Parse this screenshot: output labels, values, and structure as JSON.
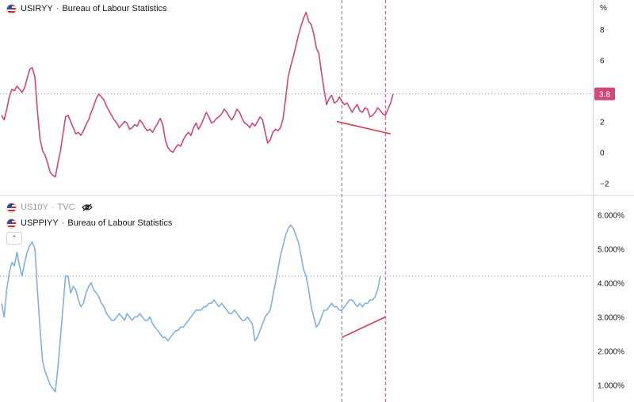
{
  "panes": {
    "top": {
      "symbol": "USIRYY",
      "source": "Bureau of Labour Statistics",
      "unit_label": "%",
      "last_value_label": "3.8",
      "line_color": "#d2467a",
      "flag_icon": "us-flag-icon"
    },
    "bottom": {
      "hidden_symbol": "US10Y",
      "hidden_source": "TVC",
      "symbol": "USPPIYY",
      "source": "Bureau of Labour Statistics",
      "line_color": "#7fb1e3",
      "flag_icon": "us-flag-icon",
      "hidden_indicator_icon": "eye-off-icon",
      "collapse_icon": "chevron-up-icon"
    },
    "separator": "·"
  },
  "chart_data": [
    {
      "type": "line",
      "pane": "top",
      "series": [
        {
          "name": "USIRYY",
          "values": [
            2.4,
            2.1,
            2.8,
            3.6,
            4.1,
            4.0,
            4.3,
            4.1,
            3.9,
            4.2,
            4.8,
            5.4,
            5.5,
            4.9,
            2.7,
            0.9,
            0.1,
            -0.2,
            -0.7,
            -1.3,
            -1.5,
            -1.6,
            -0.7,
            0.1,
            1.2,
            2.3,
            2.4,
            2.0,
            1.6,
            1.2,
            1.3,
            1.1,
            1.4,
            1.8,
            2.1,
            2.6,
            3.0,
            3.5,
            3.8,
            3.6,
            3.4,
            3.0,
            2.7,
            2.4,
            2.1,
            1.9,
            1.6,
            1.8,
            2.0,
            1.9,
            1.5,
            1.6,
            1.8,
            1.7,
            2.1,
            1.9,
            1.6,
            1.4,
            1.5,
            1.3,
            1.6,
            1.9,
            2.2,
            1.8,
            0.8,
            0.3,
            0.1,
            0.0,
            0.3,
            0.5,
            0.4,
            0.8,
            1.1,
            1.3,
            1.1,
            1.6,
            1.9,
            1.5,
            1.8,
            2.2,
            2.6,
            2.3,
            1.9,
            2.0,
            2.2,
            2.3,
            2.5,
            2.8,
            2.6,
            2.3,
            2.1,
            2.4,
            2.8,
            2.6,
            2.2,
            1.9,
            1.8,
            1.6,
            1.9,
            1.7,
            2.0,
            2.3,
            2.1,
            1.3,
            0.6,
            0.8,
            1.3,
            1.5,
            1.4,
            1.6,
            2.2,
            3.5,
            4.9,
            5.6,
            6.2,
            6.9,
            7.6,
            8.2,
            8.7,
            9.1,
            8.5,
            8.3,
            7.7,
            6.8,
            6.4,
            5.2,
            4.1,
            3.1,
            3.5,
            3.7,
            3.2,
            3.3,
            3.6,
            3.3,
            3.1,
            3.2,
            2.9,
            2.6,
            2.9,
            3.1,
            2.7,
            2.6,
            2.9,
            2.8,
            2.3,
            2.4,
            2.6,
            2.9,
            2.7,
            2.5,
            2.4,
            2.8,
            3.2,
            3.8
          ]
        }
      ],
      "y_ticks": [
        -2,
        0,
        2,
        4,
        6,
        8
      ],
      "ylim": [
        -2.6,
        9.9
      ],
      "last_value": 3.8,
      "trendline": {
        "from": [
          131,
          2.0
        ],
        "to": [
          152,
          1.2
        ]
      },
      "vertical_markers": [
        133,
        150
      ],
      "grid": false
    },
    {
      "type": "line",
      "pane": "bottom",
      "series": [
        {
          "name": "USPPIYY",
          "values": [
            3.4,
            3.0,
            3.8,
            4.3,
            4.6,
            4.5,
            4.9,
            4.5,
            4.2,
            4.6,
            4.9,
            5.1,
            5.2,
            5.0,
            3.8,
            2.7,
            1.7,
            1.4,
            1.2,
            1.0,
            0.9,
            0.8,
            1.5,
            2.4,
            3.3,
            4.2,
            4.2,
            3.7,
            3.9,
            3.8,
            3.5,
            3.3,
            3.4,
            3.7,
            3.9,
            4.0,
            3.8,
            3.7,
            3.6,
            3.4,
            3.3,
            3.1,
            3.0,
            2.9,
            2.9,
            3.0,
            3.1,
            3.0,
            2.9,
            3.1,
            3.0,
            2.9,
            3.0,
            3.0,
            3.1,
            3.0,
            2.9,
            2.9,
            3.0,
            2.8,
            2.7,
            2.6,
            2.5,
            2.4,
            2.4,
            2.3,
            2.4,
            2.5,
            2.6,
            2.6,
            2.7,
            2.7,
            2.8,
            2.9,
            3.0,
            3.1,
            3.2,
            3.2,
            3.2,
            3.3,
            3.3,
            3.4,
            3.4,
            3.5,
            3.4,
            3.3,
            3.4,
            3.3,
            3.2,
            3.1,
            3.1,
            3.2,
            3.1,
            3.0,
            2.9,
            2.9,
            3.0,
            2.9,
            2.8,
            2.3,
            2.4,
            2.6,
            2.8,
            3.0,
            3.1,
            3.2,
            3.6,
            4.0,
            4.4,
            4.8,
            5.1,
            5.4,
            5.6,
            5.7,
            5.6,
            5.4,
            5.2,
            4.8,
            4.4,
            4.2,
            3.8,
            3.3,
            3.0,
            2.7,
            2.8,
            3.0,
            3.2,
            3.2,
            3.3,
            3.4,
            3.3,
            3.3,
            3.2,
            3.2,
            3.3,
            3.4,
            3.5,
            3.5,
            3.4,
            3.3,
            3.4,
            3.3,
            3.4,
            3.4,
            3.5,
            3.5,
            3.6,
            3.8,
            4.2
          ]
        }
      ],
      "y_tick_labels": [
        "1.000%",
        "2.000%",
        "3.000%",
        "4.000%",
        "5.000%",
        "6.000%"
      ],
      "y_ticks": [
        1,
        2,
        3,
        4,
        5,
        6
      ],
      "ylim": [
        0.5,
        6.5
      ],
      "last_value": 4.2,
      "trendline": {
        "from": [
          133,
          2.4
        ],
        "to": [
          150,
          3.0
        ]
      },
      "vertical_markers": [
        133,
        150
      ],
      "grid": false
    }
  ]
}
